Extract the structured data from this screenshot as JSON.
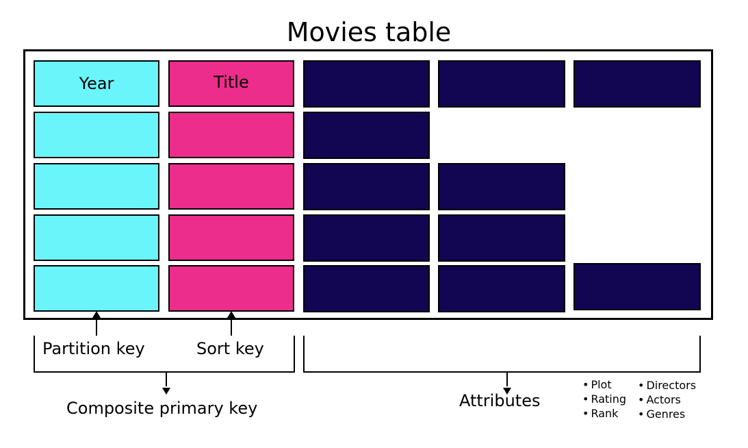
{
  "title": "Movies table",
  "columns": {
    "partition_key_header": "Year",
    "sort_key_header": "Title"
  },
  "labels": {
    "partition_key": "Partition key",
    "sort_key": "Sort key",
    "composite_primary_key": "Composite primary key",
    "attributes": "Attributes"
  },
  "attribute_list": {
    "left": [
      "Plot",
      "Rating",
      "Rank"
    ],
    "right": [
      "Directors",
      "Actors",
      "Genres"
    ]
  },
  "colors": {
    "partition_key": "#6af5fb",
    "sort_key": "#ec2d8b",
    "attribute": "#120552"
  }
}
